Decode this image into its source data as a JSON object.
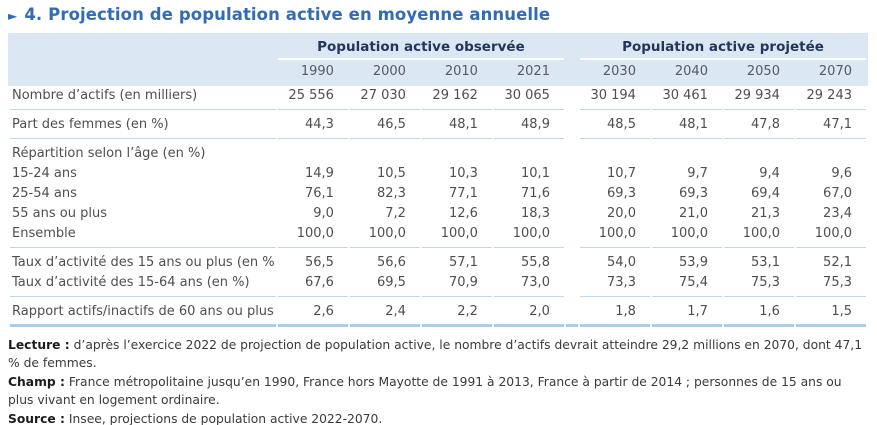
{
  "title": {
    "arrow": "►",
    "text": "4. Projection de population active en moyenne annuelle"
  },
  "table": {
    "col_groups": [
      {
        "label": "Population active observée",
        "years": [
          "1990",
          "2000",
          "2010",
          "2021"
        ]
      },
      {
        "label": "Population active projetée",
        "years": [
          "2030",
          "2040",
          "2050",
          "2070"
        ]
      }
    ],
    "rows": [
      {
        "label": "Nombre d’actifs (en milliers)",
        "values": [
          "25 556",
          "27 030",
          "29 162",
          "30 065",
          "30 194",
          "30 461",
          "29 934",
          "29 243"
        ],
        "separator_after": true
      },
      {
        "label": "Part des femmes (en %)",
        "values": [
          "44,3",
          "46,5",
          "48,1",
          "48,9",
          "48,5",
          "48,1",
          "47,8",
          "47,1"
        ],
        "separator_after": true
      },
      {
        "label": "Répartition selon l’âge (en %)",
        "values": [
          "",
          "",
          "",
          "",
          "",
          "",
          "",
          ""
        ],
        "separator_after": false
      },
      {
        "label": "15-24 ans",
        "values": [
          "14,9",
          "10,5",
          "10,3",
          "10,1",
          "10,7",
          "9,7",
          "9,4",
          "9,6"
        ],
        "separator_after": false
      },
      {
        "label": "25-54 ans",
        "values": [
          "76,1",
          "82,3",
          "77,1",
          "71,6",
          "69,3",
          "69,3",
          "69,4",
          "67,0"
        ],
        "separator_after": false
      },
      {
        "label": "55 ans ou plus",
        "values": [
          "9,0",
          "7,2",
          "12,6",
          "18,3",
          "20,0",
          "21,0",
          "21,3",
          "23,4"
        ],
        "separator_after": false
      },
      {
        "label": "Ensemble",
        "values": [
          "100,0",
          "100,0",
          "100,0",
          "100,0",
          "100,0",
          "100,0",
          "100,0",
          "100,0"
        ],
        "separator_after": true
      },
      {
        "label": "Taux d’activité des 15 ans ou plus (en %)",
        "values": [
          "56,5",
          "56,6",
          "57,1",
          "55,8",
          "54,0",
          "53,9",
          "53,1",
          "52,1"
        ],
        "separator_after": false
      },
      {
        "label": "Taux d’activité des 15-64 ans (en %)",
        "values": [
          "67,6",
          "69,5",
          "70,9",
          "73,0",
          "73,3",
          "75,4",
          "75,3",
          "75,3"
        ],
        "separator_after": true
      },
      {
        "label": "Rapport actifs/inactifs de 60 ans ou plus",
        "values": [
          "2,6",
          "2,4",
          "2,2",
          "2,0",
          "1,8",
          "1,7",
          "1,6",
          "1,5"
        ],
        "separator_after": false
      }
    ]
  },
  "notes": [
    {
      "label": "Lecture :",
      "text": "d’après l’exercice 2022 de projection de population active, le nombre d’actifs devrait atteindre 29,2 millions en 2070, dont 47,1 % de femmes."
    },
    {
      "label": "Champ :",
      "text": "France métropolitaine jusqu’en 1990, France hors Mayotte de 1991 à 2013, France à partir de 2014 ; personnes de 15 ans ou plus vivant en logement ordinaire."
    },
    {
      "label": "Source :",
      "text": "Insee, projections de population active 2022-2070."
    }
  ],
  "colors": {
    "accent_blue": "#316cb4",
    "header_bg": "#dbe8f4",
    "header_text": "#22365c",
    "rule": "#bcd9ee",
    "rule_strong": "#a9cee9",
    "text": "#4f4f4f",
    "note_text": "#3a3a3a"
  }
}
